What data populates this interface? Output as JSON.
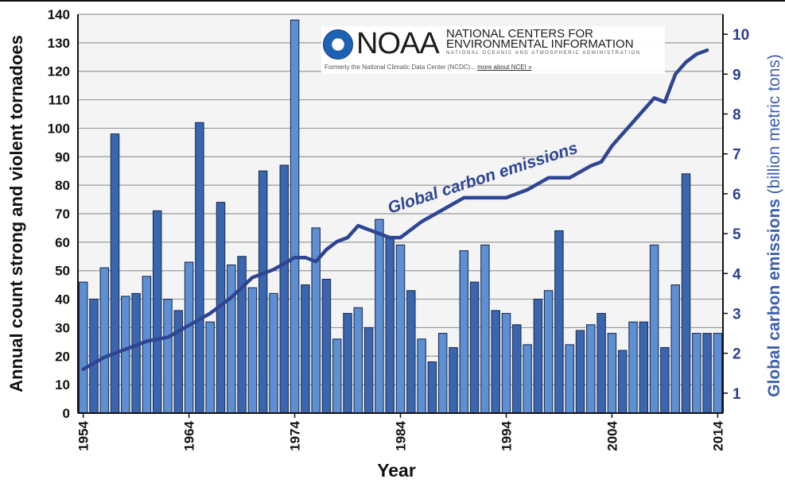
{
  "chart_data": {
    "type": "bar",
    "xlabel": "Year",
    "ylabel": "Annual count strong and violent tornadoes",
    "ylim": [
      0,
      140
    ],
    "yticks": [
      0,
      10,
      20,
      30,
      40,
      50,
      60,
      70,
      80,
      90,
      100,
      110,
      120,
      130,
      140
    ],
    "x_tick_labels": [
      "1954",
      "1964",
      "1974",
      "1984",
      "1994",
      "2004",
      "2014"
    ],
    "years": [
      1954,
      1955,
      1956,
      1957,
      1958,
      1959,
      1960,
      1961,
      1962,
      1963,
      1964,
      1965,
      1966,
      1967,
      1968,
      1969,
      1970,
      1971,
      1972,
      1973,
      1974,
      1975,
      1976,
      1977,
      1978,
      1979,
      1980,
      1981,
      1982,
      1983,
      1984,
      1985,
      1986,
      1987,
      1988,
      1989,
      1990,
      1991,
      1992,
      1993,
      1994,
      1995,
      1996,
      1997,
      1998,
      1999,
      2000,
      2001,
      2002,
      2003,
      2004,
      2005,
      2006,
      2007,
      2008,
      2009,
      2010,
      2011,
      2012,
      2013,
      2014
    ],
    "tornado_counts": [
      46,
      40,
      51,
      98,
      41,
      42,
      48,
      71,
      40,
      36,
      53,
      102,
      32,
      74,
      52,
      55,
      44,
      85,
      42,
      87,
      138,
      45,
      65,
      47,
      26,
      35,
      37,
      30,
      68,
      62,
      59,
      43,
      26,
      18,
      28,
      23,
      57,
      46,
      59,
      36,
      35,
      31,
      24,
      40,
      43,
      64,
      24,
      29,
      31,
      35,
      28,
      22,
      32,
      32,
      59,
      23,
      45,
      84,
      28,
      28,
      28
    ],
    "bar_colors": [
      "#5d8fd3",
      "#3a66b0"
    ],
    "secondary_axis": {
      "label": "Global carbon emissions",
      "unit": "(billion metric tons)",
      "ylim": [
        0.5,
        10.5
      ],
      "yticks": [
        1,
        2,
        3,
        4,
        5,
        6,
        7,
        8,
        9,
        10
      ],
      "color": "#2e4593"
    },
    "series": [
      {
        "name": "Global carbon emissions",
        "type": "line",
        "axis": "right",
        "color": "#2e4593",
        "years": [
          1954,
          1956,
          1958,
          1960,
          1962,
          1964,
          1966,
          1968,
          1970,
          1972,
          1974,
          1975,
          1976,
          1977,
          1978,
          1979,
          1980,
          1982,
          1983,
          1984,
          1986,
          1988,
          1990,
          1992,
          1994,
          1996,
          1998,
          2000,
          2002,
          2003,
          2004,
          2006,
          2008,
          2009,
          2010,
          2011,
          2012,
          2013
        ],
        "values": [
          1.6,
          1.9,
          2.1,
          2.3,
          2.4,
          2.7,
          3.0,
          3.4,
          3.9,
          4.1,
          4.4,
          4.4,
          4.3,
          4.6,
          4.8,
          4.9,
          5.2,
          5.0,
          4.9,
          4.9,
          5.3,
          5.6,
          5.9,
          5.9,
          5.9,
          6.1,
          6.4,
          6.4,
          6.7,
          6.8,
          7.2,
          7.8,
          8.4,
          8.3,
          9.0,
          9.3,
          9.5,
          9.6
        ]
      }
    ],
    "annotations": [
      {
        "text": "Global carbon emissions",
        "x_year": 1983,
        "y": 70,
        "rotation_deg": -18
      }
    ],
    "grid": true,
    "legend": "none"
  },
  "logo": {
    "wordmark": "NOAA",
    "line1": "NATIONAL CENTERS FOR",
    "line2": "ENVIRONMENTAL INFORMATION",
    "line3": "NATIONAL OCEANIC AND ATMOSPHERIC ADMINISTRATION",
    "note": "Formerly the National Climatic Data Center (NCDC)...",
    "link": "more about NCEI »"
  }
}
